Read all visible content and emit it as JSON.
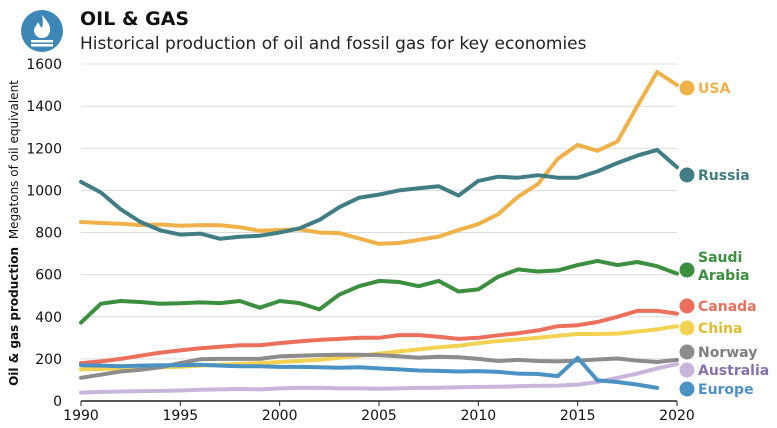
{
  "header": {
    "title": "OIL & GAS",
    "subtitle": "Historical production of oil and fossil gas for key economies",
    "icon": "flame-icon",
    "icon_color": "#3d86b8"
  },
  "chart_data": {
    "type": "line",
    "title": "OIL & GAS",
    "subtitle": "Historical production of oil and fossil gas for key economies",
    "xlabel": "",
    "ylabel_bold": "Oil & gas production",
    "ylabel_rest": "Megatons of oil equivalent",
    "xlim": [
      1990,
      2020
    ],
    "ylim": [
      0,
      1600
    ],
    "x_ticks": [
      1990,
      1995,
      2000,
      2005,
      2010,
      2015,
      2020
    ],
    "y_ticks": [
      0,
      200,
      400,
      600,
      800,
      1000,
      1200,
      1400,
      1600
    ],
    "grid": "horizontal",
    "series": [
      {
        "name": "USA",
        "color": "#f0b149",
        "flag": "us-flag-icon",
        "x": [
          1990,
          1991,
          1992,
          1993,
          1994,
          1995,
          1996,
          1997,
          1998,
          1999,
          2000,
          2001,
          2002,
          2003,
          2004,
          2005,
          2006,
          2007,
          2008,
          2009,
          2010,
          2011,
          2012,
          2013,
          2014,
          2015,
          2016,
          2017,
          2018,
          2019,
          2020
        ],
        "y": [
          850,
          845,
          842,
          835,
          838,
          832,
          835,
          834,
          825,
          808,
          812,
          815,
          800,
          797,
          772,
          746,
          750,
          765,
          780,
          812,
          840,
          887,
          970,
          1030,
          1150,
          1216,
          1188,
          1232,
          1400,
          1562,
          1500
        ]
      },
      {
        "name": "Russia",
        "color": "#417d84",
        "flag": "ru-flag-icon",
        "x": [
          1990,
          1991,
          1992,
          1993,
          1994,
          1995,
          1996,
          1997,
          1998,
          1999,
          2000,
          2001,
          2002,
          2003,
          2004,
          2005,
          2006,
          2007,
          2008,
          2009,
          2010,
          2011,
          2012,
          2013,
          2014,
          2015,
          2016,
          2017,
          2018,
          2019,
          2020
        ],
        "y": [
          1040,
          990,
          910,
          850,
          810,
          790,
          795,
          770,
          780,
          785,
          800,
          820,
          860,
          920,
          965,
          980,
          1000,
          1010,
          1020,
          975,
          1045,
          1065,
          1060,
          1072,
          1060,
          1060,
          1090,
          1130,
          1165,
          1192,
          1110
        ]
      },
      {
        "name": "Saudi Arabia",
        "color": "#3b8f3e",
        "flag": "sa-flag-icon",
        "x": [
          1990,
          1991,
          1992,
          1993,
          1994,
          1995,
          1996,
          1997,
          1998,
          1999,
          2000,
          2001,
          2002,
          2003,
          2004,
          2005,
          2006,
          2007,
          2008,
          2009,
          2010,
          2011,
          2012,
          2013,
          2014,
          2015,
          2016,
          2017,
          2018,
          2019,
          2020
        ],
        "y": [
          372,
          462,
          475,
          470,
          462,
          464,
          468,
          465,
          475,
          443,
          475,
          465,
          435,
          505,
          545,
          570,
          565,
          545,
          570,
          520,
          530,
          590,
          625,
          615,
          620,
          645,
          665,
          645,
          660,
          640,
          605
        ]
      },
      {
        "name": "Canada",
        "color": "#ec6f5b",
        "flag": "ca-flag-icon",
        "x": [
          1990,
          1991,
          1992,
          1993,
          1994,
          1995,
          1996,
          1997,
          1998,
          1999,
          2000,
          2001,
          2002,
          2003,
          2004,
          2005,
          2006,
          2007,
          2008,
          2009,
          2010,
          2011,
          2012,
          2013,
          2014,
          2015,
          2016,
          2017,
          2018,
          2019,
          2020
        ],
        "y": [
          180,
          188,
          200,
          215,
          230,
          240,
          250,
          258,
          265,
          265,
          275,
          283,
          290,
          295,
          300,
          300,
          313,
          313,
          305,
          295,
          300,
          312,
          322,
          335,
          355,
          360,
          375,
          400,
          428,
          428,
          415
        ]
      },
      {
        "name": "China",
        "color": "#f3d251",
        "flag": "cn-flag-icon",
        "x": [
          1990,
          1991,
          1992,
          1993,
          1994,
          1995,
          1996,
          1997,
          1998,
          1999,
          2000,
          2001,
          2002,
          2003,
          2004,
          2005,
          2006,
          2007,
          2008,
          2009,
          2010,
          2011,
          2012,
          2013,
          2014,
          2015,
          2016,
          2017,
          2018,
          2019,
          2020
        ],
        "y": [
          150,
          152,
          155,
          158,
          160,
          163,
          168,
          172,
          176,
          180,
          185,
          190,
          196,
          205,
          214,
          225,
          235,
          245,
          255,
          262,
          275,
          285,
          292,
          300,
          310,
          318,
          318,
          320,
          330,
          340,
          355
        ]
      },
      {
        "name": "Norway",
        "color": "#8c8c8c",
        "flag": "no-flag-icon",
        "x": [
          1990,
          1991,
          1992,
          1993,
          1994,
          1995,
          1996,
          1997,
          1998,
          1999,
          2000,
          2001,
          2002,
          2003,
          2004,
          2005,
          2006,
          2007,
          2008,
          2009,
          2010,
          2011,
          2012,
          2013,
          2014,
          2015,
          2016,
          2017,
          2018,
          2019,
          2020
        ],
        "y": [
          110,
          125,
          140,
          148,
          160,
          180,
          198,
          200,
          200,
          200,
          212,
          215,
          218,
          220,
          220,
          218,
          212,
          205,
          210,
          208,
          200,
          190,
          195,
          190,
          188,
          192,
          197,
          202,
          192,
          185,
          195
        ]
      },
      {
        "name": "Australia",
        "color": "#c9b5dc",
        "flag": "au-flag-icon",
        "x": [
          1990,
          1991,
          1992,
          1993,
          1994,
          1995,
          1996,
          1997,
          1998,
          1999,
          2000,
          2001,
          2002,
          2003,
          2004,
          2005,
          2006,
          2007,
          2008,
          2009,
          2010,
          2011,
          2012,
          2013,
          2014,
          2015,
          2016,
          2017,
          2018,
          2019,
          2020
        ],
        "y": [
          40,
          43,
          45,
          47,
          48,
          50,
          53,
          55,
          57,
          55,
          60,
          62,
          63,
          60,
          60,
          58,
          60,
          62,
          63,
          65,
          67,
          68,
          70,
          72,
          73,
          78,
          90,
          110,
          130,
          155,
          175
        ]
      },
      {
        "name": "Europe",
        "color": "#4a92c3",
        "flag": "eu-flag-icon",
        "x": [
          1990,
          1991,
          1992,
          1993,
          1994,
          1995,
          1996,
          1997,
          1998,
          1999,
          2000,
          2001,
          2002,
          2003,
          2004,
          2005,
          2006,
          2007,
          2008,
          2009,
          2010,
          2011,
          2012,
          2013,
          2014,
          2015,
          2016,
          2017,
          2018,
          2019
        ],
        "y": [
          170,
          168,
          165,
          168,
          170,
          170,
          172,
          168,
          165,
          165,
          162,
          162,
          160,
          158,
          160,
          155,
          150,
          145,
          143,
          140,
          142,
          138,
          130,
          128,
          118,
          205,
          98,
          90,
          78,
          62
        ]
      }
    ]
  }
}
